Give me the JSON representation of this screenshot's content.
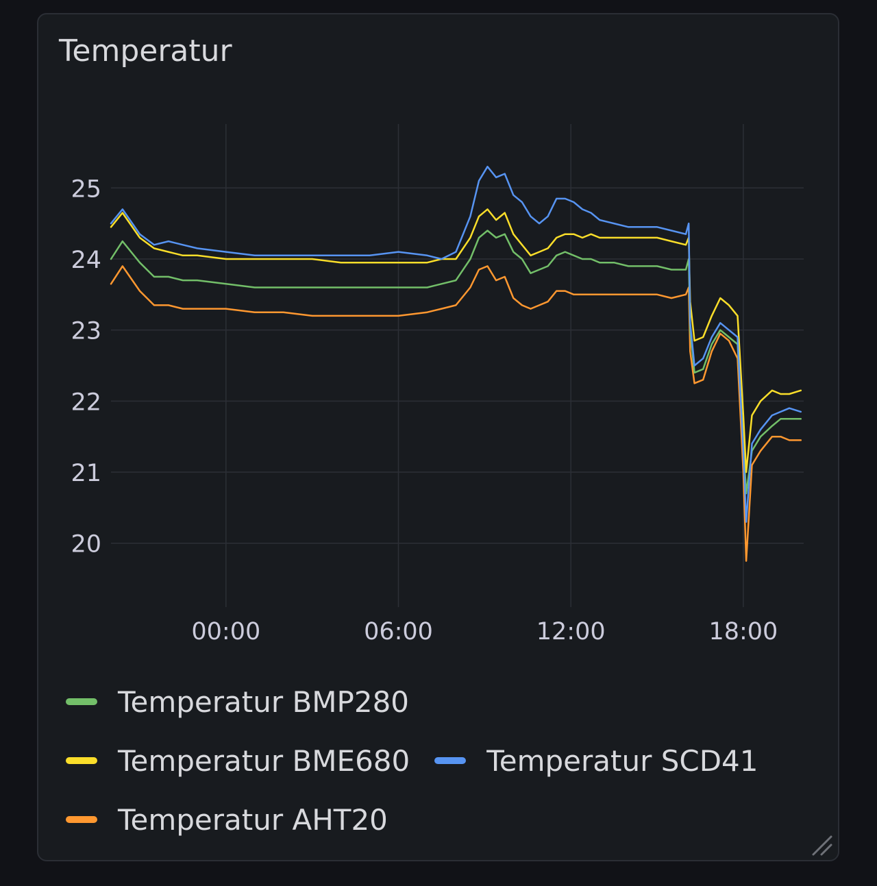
{
  "panel": {
    "title": "Temperatur"
  },
  "chart_data": {
    "type": "line",
    "title": "Temperatur",
    "xlabel": "",
    "ylabel": "",
    "x_unit": "hours",
    "x_ticks": [
      {
        "label": "00:00",
        "value": 0
      },
      {
        "label": "06:00",
        "value": 6
      },
      {
        "label": "12:00",
        "value": 12
      },
      {
        "label": "18:00",
        "value": 18
      }
    ],
    "y_ticks": [
      20,
      21,
      22,
      23,
      24,
      25
    ],
    "xlim": [
      -4,
      20.1
    ],
    "ylim": [
      19.1,
      25.9
    ],
    "grid": true,
    "legend_position": "bottom",
    "x": [
      -4,
      -3.6,
      -3,
      -2.5,
      -2,
      -1.5,
      -1,
      0,
      1,
      2,
      3,
      4,
      5,
      6,
      7,
      7.5,
      8,
      8.5,
      8.8,
      9.1,
      9.4,
      9.7,
      10,
      10.3,
      10.6,
      10.9,
      11.2,
      11.5,
      11.8,
      12.1,
      12.4,
      12.7,
      13,
      13.5,
      14,
      15,
      15.5,
      16,
      16.1,
      16.15,
      16.3,
      16.6,
      16.9,
      17.2,
      17.5,
      17.8,
      18.0,
      18.1,
      18.3,
      18.6,
      19.0,
      19.3,
      19.6,
      20.0
    ],
    "series": [
      {
        "name": "Temperatur BMP280",
        "color": "#73bf69",
        "values": [
          24.0,
          24.25,
          23.95,
          23.75,
          23.75,
          23.7,
          23.7,
          23.65,
          23.6,
          23.6,
          23.6,
          23.6,
          23.6,
          23.6,
          23.6,
          23.65,
          23.7,
          24.0,
          24.3,
          24.4,
          24.3,
          24.35,
          24.1,
          24.0,
          23.8,
          23.85,
          23.9,
          24.05,
          24.1,
          24.05,
          24.0,
          24.0,
          23.95,
          23.95,
          23.9,
          23.9,
          23.85,
          23.85,
          24.0,
          23.0,
          22.4,
          22.45,
          22.8,
          23.0,
          22.9,
          22.8,
          21.4,
          20.7,
          21.3,
          21.5,
          21.65,
          21.75,
          21.75,
          21.75
        ]
      },
      {
        "name": "Temperatur BME680",
        "color": "#fade2a",
        "values": [
          24.45,
          24.65,
          24.3,
          24.15,
          24.1,
          24.05,
          24.05,
          24.0,
          24.0,
          24.0,
          24.0,
          23.95,
          23.95,
          23.95,
          23.95,
          24.0,
          24.0,
          24.3,
          24.6,
          24.7,
          24.55,
          24.65,
          24.35,
          24.2,
          24.05,
          24.1,
          24.15,
          24.3,
          24.35,
          24.35,
          24.3,
          24.35,
          24.3,
          24.3,
          24.3,
          24.3,
          24.25,
          24.2,
          24.3,
          23.4,
          22.85,
          22.9,
          23.2,
          23.45,
          23.35,
          23.2,
          21.8,
          21.0,
          21.8,
          22.0,
          22.15,
          22.1,
          22.1,
          22.15
        ]
      },
      {
        "name": "Temperatur SCD41",
        "color": "#5794f2",
        "values": [
          24.5,
          24.7,
          24.35,
          24.2,
          24.25,
          24.2,
          24.15,
          24.1,
          24.05,
          24.05,
          24.05,
          24.05,
          24.05,
          24.1,
          24.05,
          24.0,
          24.1,
          24.6,
          25.1,
          25.3,
          25.15,
          25.2,
          24.9,
          24.8,
          24.6,
          24.5,
          24.6,
          24.85,
          24.85,
          24.8,
          24.7,
          24.65,
          24.55,
          24.5,
          24.45,
          24.45,
          24.4,
          24.35,
          24.5,
          23.1,
          22.5,
          22.6,
          22.9,
          23.1,
          23.0,
          22.9,
          21.3,
          20.3,
          21.4,
          21.6,
          21.8,
          21.85,
          21.9,
          21.85
        ]
      },
      {
        "name": "Temperatur AHT20",
        "color": "#ff9830",
        "values": [
          23.65,
          23.9,
          23.55,
          23.35,
          23.35,
          23.3,
          23.3,
          23.3,
          23.25,
          23.25,
          23.2,
          23.2,
          23.2,
          23.2,
          23.25,
          23.3,
          23.35,
          23.6,
          23.85,
          23.9,
          23.7,
          23.75,
          23.45,
          23.35,
          23.3,
          23.35,
          23.4,
          23.55,
          23.55,
          23.5,
          23.5,
          23.5,
          23.5,
          23.5,
          23.5,
          23.5,
          23.45,
          23.5,
          23.6,
          22.7,
          22.25,
          22.3,
          22.7,
          22.95,
          22.85,
          22.6,
          21.0,
          19.75,
          21.1,
          21.3,
          21.5,
          21.5,
          21.45,
          21.45
        ]
      }
    ]
  },
  "legend": {
    "rows": [
      [
        0
      ],
      [
        1,
        2
      ],
      [
        3
      ]
    ]
  },
  "icons": {
    "resize": "resize-handle-icon"
  }
}
